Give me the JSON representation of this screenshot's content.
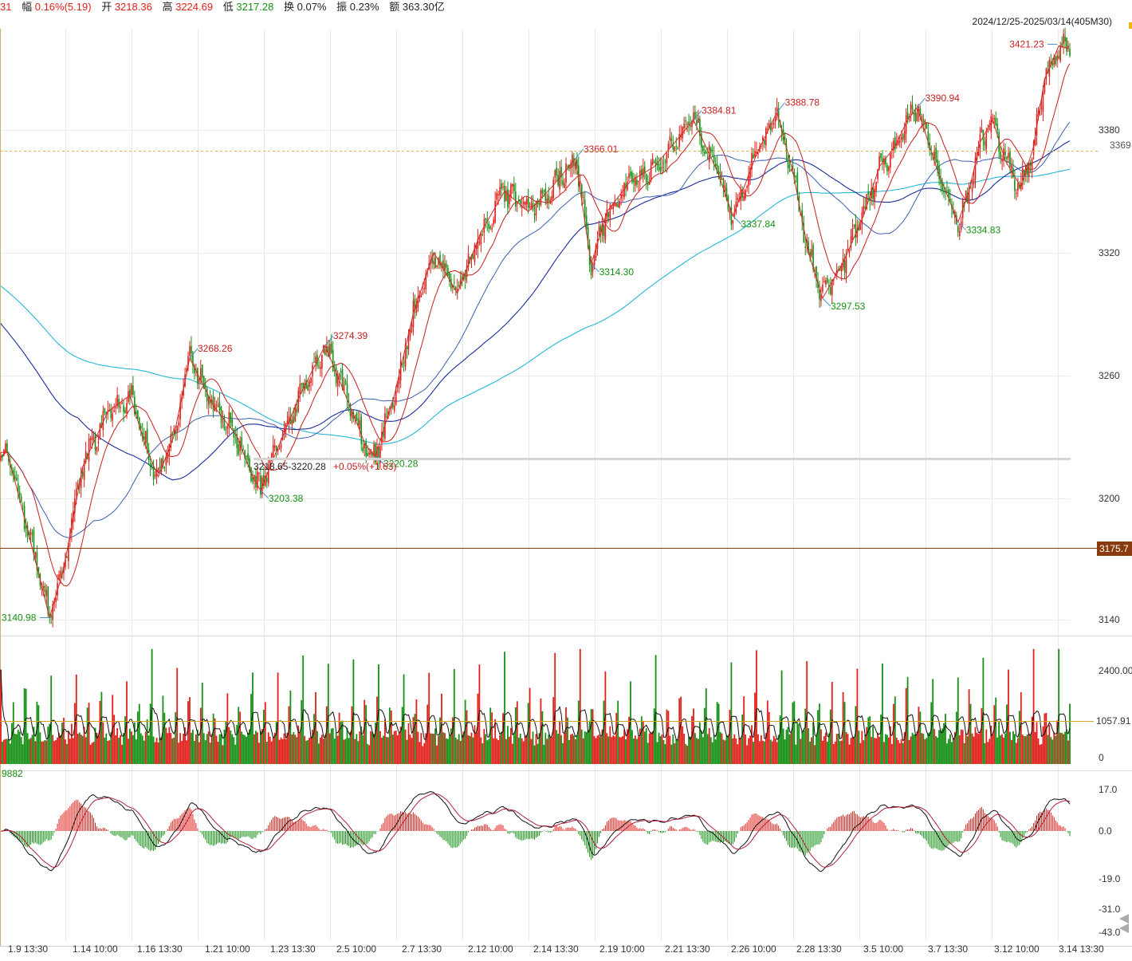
{
  "header": {
    "partial": "31",
    "amp_label": "幅",
    "amp_value": "0.16%(5.19)",
    "open_label": "开",
    "open_value": "3218.36",
    "high_label": "高",
    "high_value": "3224.69",
    "low_label": "低",
    "low_value": "3217.28",
    "turnover_label": "换",
    "turnover_value": "0.07%",
    "swing_label": "振",
    "swing_value": "0.23%",
    "amount_label": "额",
    "amount_value": "363.30亿"
  },
  "date_range": "2024/12/25-2025/03/14(405M30)",
  "price_ticks": [
    "3380",
    "3320",
    "3260",
    "3200",
    "3140"
  ],
  "price_tags": {
    "dashed_level": "3369",
    "solid_level": "3175.7"
  },
  "volume_ticks": [
    "2400.00",
    "1057.91",
    "0"
  ],
  "macd_ticks": [
    "17.0",
    "0.0",
    "-19.0",
    "-31.0",
    "-43.0"
  ],
  "macd_partial_label": "9882",
  "x_labels": [
    "1.9 13:30",
    "1.14 10:00",
    "1.16 13:30",
    "1.21 10:00",
    "1.23 13:30",
    "2.5 10:00",
    "2.7 13:30",
    "2.12 10:00",
    "2.14 13:30",
    "2.19 10:00",
    "2.21 13:30",
    "2.26 10:00",
    "2.28 13:30",
    "3.5 10:00",
    "3.7 13:30",
    "3.12 10:00",
    "3.14 13:30"
  ],
  "colors": {
    "up": "#e0201a",
    "down": "#159015",
    "ma_red": "#c81e1e",
    "ma_blue_light": "#3c5fb0",
    "ma_navy": "#1a2c9a",
    "ma_cyan": "#22b8d6",
    "level_line": "#8b3a0e",
    "dashed_line": "#e3b14a"
  },
  "chart_data": {
    "type": "candlestick",
    "title": "",
    "interval": "30min",
    "bar_count": 405,
    "y_ticks": [
      3380,
      3320,
      3260,
      3200,
      3140
    ],
    "reference_levels": {
      "dashed": 3369,
      "solid": 3175.7
    },
    "pivots": [
      {
        "label": "3140.98",
        "value": 3140.98,
        "type": "low"
      },
      {
        "label": "3268.26",
        "value": 3268.26,
        "type": "high"
      },
      {
        "label": "3203.38",
        "value": 3203.38,
        "type": "low"
      },
      {
        "label": "3274.39",
        "value": 3274.39,
        "type": "high"
      },
      {
        "label": "3220.28",
        "value": 3220.28,
        "type": "low"
      },
      {
        "label": "3366.01",
        "value": 3366.01,
        "type": "high"
      },
      {
        "label": "3314.30",
        "value": 3314.3,
        "type": "low"
      },
      {
        "label": "3384.81",
        "value": 3384.81,
        "type": "high"
      },
      {
        "label": "3337.84",
        "value": 3337.84,
        "type": "low"
      },
      {
        "label": "3388.78",
        "value": 3388.78,
        "type": "high"
      },
      {
        "label": "3297.53",
        "value": 3297.53,
        "type": "low"
      },
      {
        "label": "3390.94",
        "value": 3390.94,
        "type": "high"
      },
      {
        "label": "3334.83",
        "value": 3334.83,
        "type": "low"
      },
      {
        "label": "3421.23",
        "value": 3421.23,
        "type": "high"
      }
    ],
    "price_path": [
      [
        3222,
        0
      ],
      [
        3222,
        4
      ],
      [
        3205,
        10
      ],
      [
        3175,
        20
      ],
      [
        3140.98,
        31
      ],
      [
        3165,
        40
      ],
      [
        3215,
        52
      ],
      [
        3242,
        68
      ],
      [
        3250,
        82
      ],
      [
        3225,
        92
      ],
      [
        3210,
        100
      ],
      [
        3230,
        110
      ],
      [
        3268.26,
        120
      ],
      [
        3245,
        135
      ],
      [
        3230,
        150
      ],
      [
        3210,
        160
      ],
      [
        3203.38,
        165
      ],
      [
        3228,
        178
      ],
      [
        3250,
        190
      ],
      [
        3274.39,
        206
      ],
      [
        3248,
        220
      ],
      [
        3225,
        232
      ],
      [
        3220.28,
        238
      ],
      [
        3250,
        250
      ],
      [
        3290,
        262
      ],
      [
        3320,
        275
      ],
      [
        3300,
        290
      ],
      [
        3330,
        305
      ],
      [
        3350,
        320
      ],
      [
        3340,
        335
      ],
      [
        3352,
        350
      ],
      [
        3366.01,
        365
      ],
      [
        3314.3,
        375
      ],
      [
        3340,
        385
      ],
      [
        3355,
        400
      ],
      [
        3362,
        415
      ],
      [
        3384.81,
        440
      ],
      [
        3360,
        455
      ],
      [
        3337.84,
        465
      ],
      [
        3368,
        480
      ],
      [
        3388.78,
        493
      ],
      [
        3360,
        503
      ],
      [
        3320,
        513
      ],
      [
        3297.53,
        522
      ],
      [
        3315,
        535
      ],
      [
        3338,
        548
      ],
      [
        3362,
        558
      ],
      [
        3372,
        568
      ],
      [
        3385,
        576
      ],
      [
        3390.94,
        582
      ],
      [
        3360,
        595
      ],
      [
        3334.83,
        608
      ],
      [
        3350,
        615
      ],
      [
        3374,
        622
      ],
      [
        3385,
        630
      ],
      [
        3365,
        638
      ],
      [
        3352,
        648
      ],
      [
        3372,
        656
      ],
      [
        3405,
        663
      ],
      [
        3421.23,
        672
      ],
      [
        3420,
        678
      ]
    ],
    "selected_range": {
      "text": "3218.65-3220.28",
      "change": "+0.05%(+1.63)"
    },
    "volume_y_ticks": [
      2400,
      1057.91,
      0
    ],
    "macd_y_ticks": [
      17.0,
      0.0,
      -19.0,
      -31.0,
      -43.0
    ]
  }
}
